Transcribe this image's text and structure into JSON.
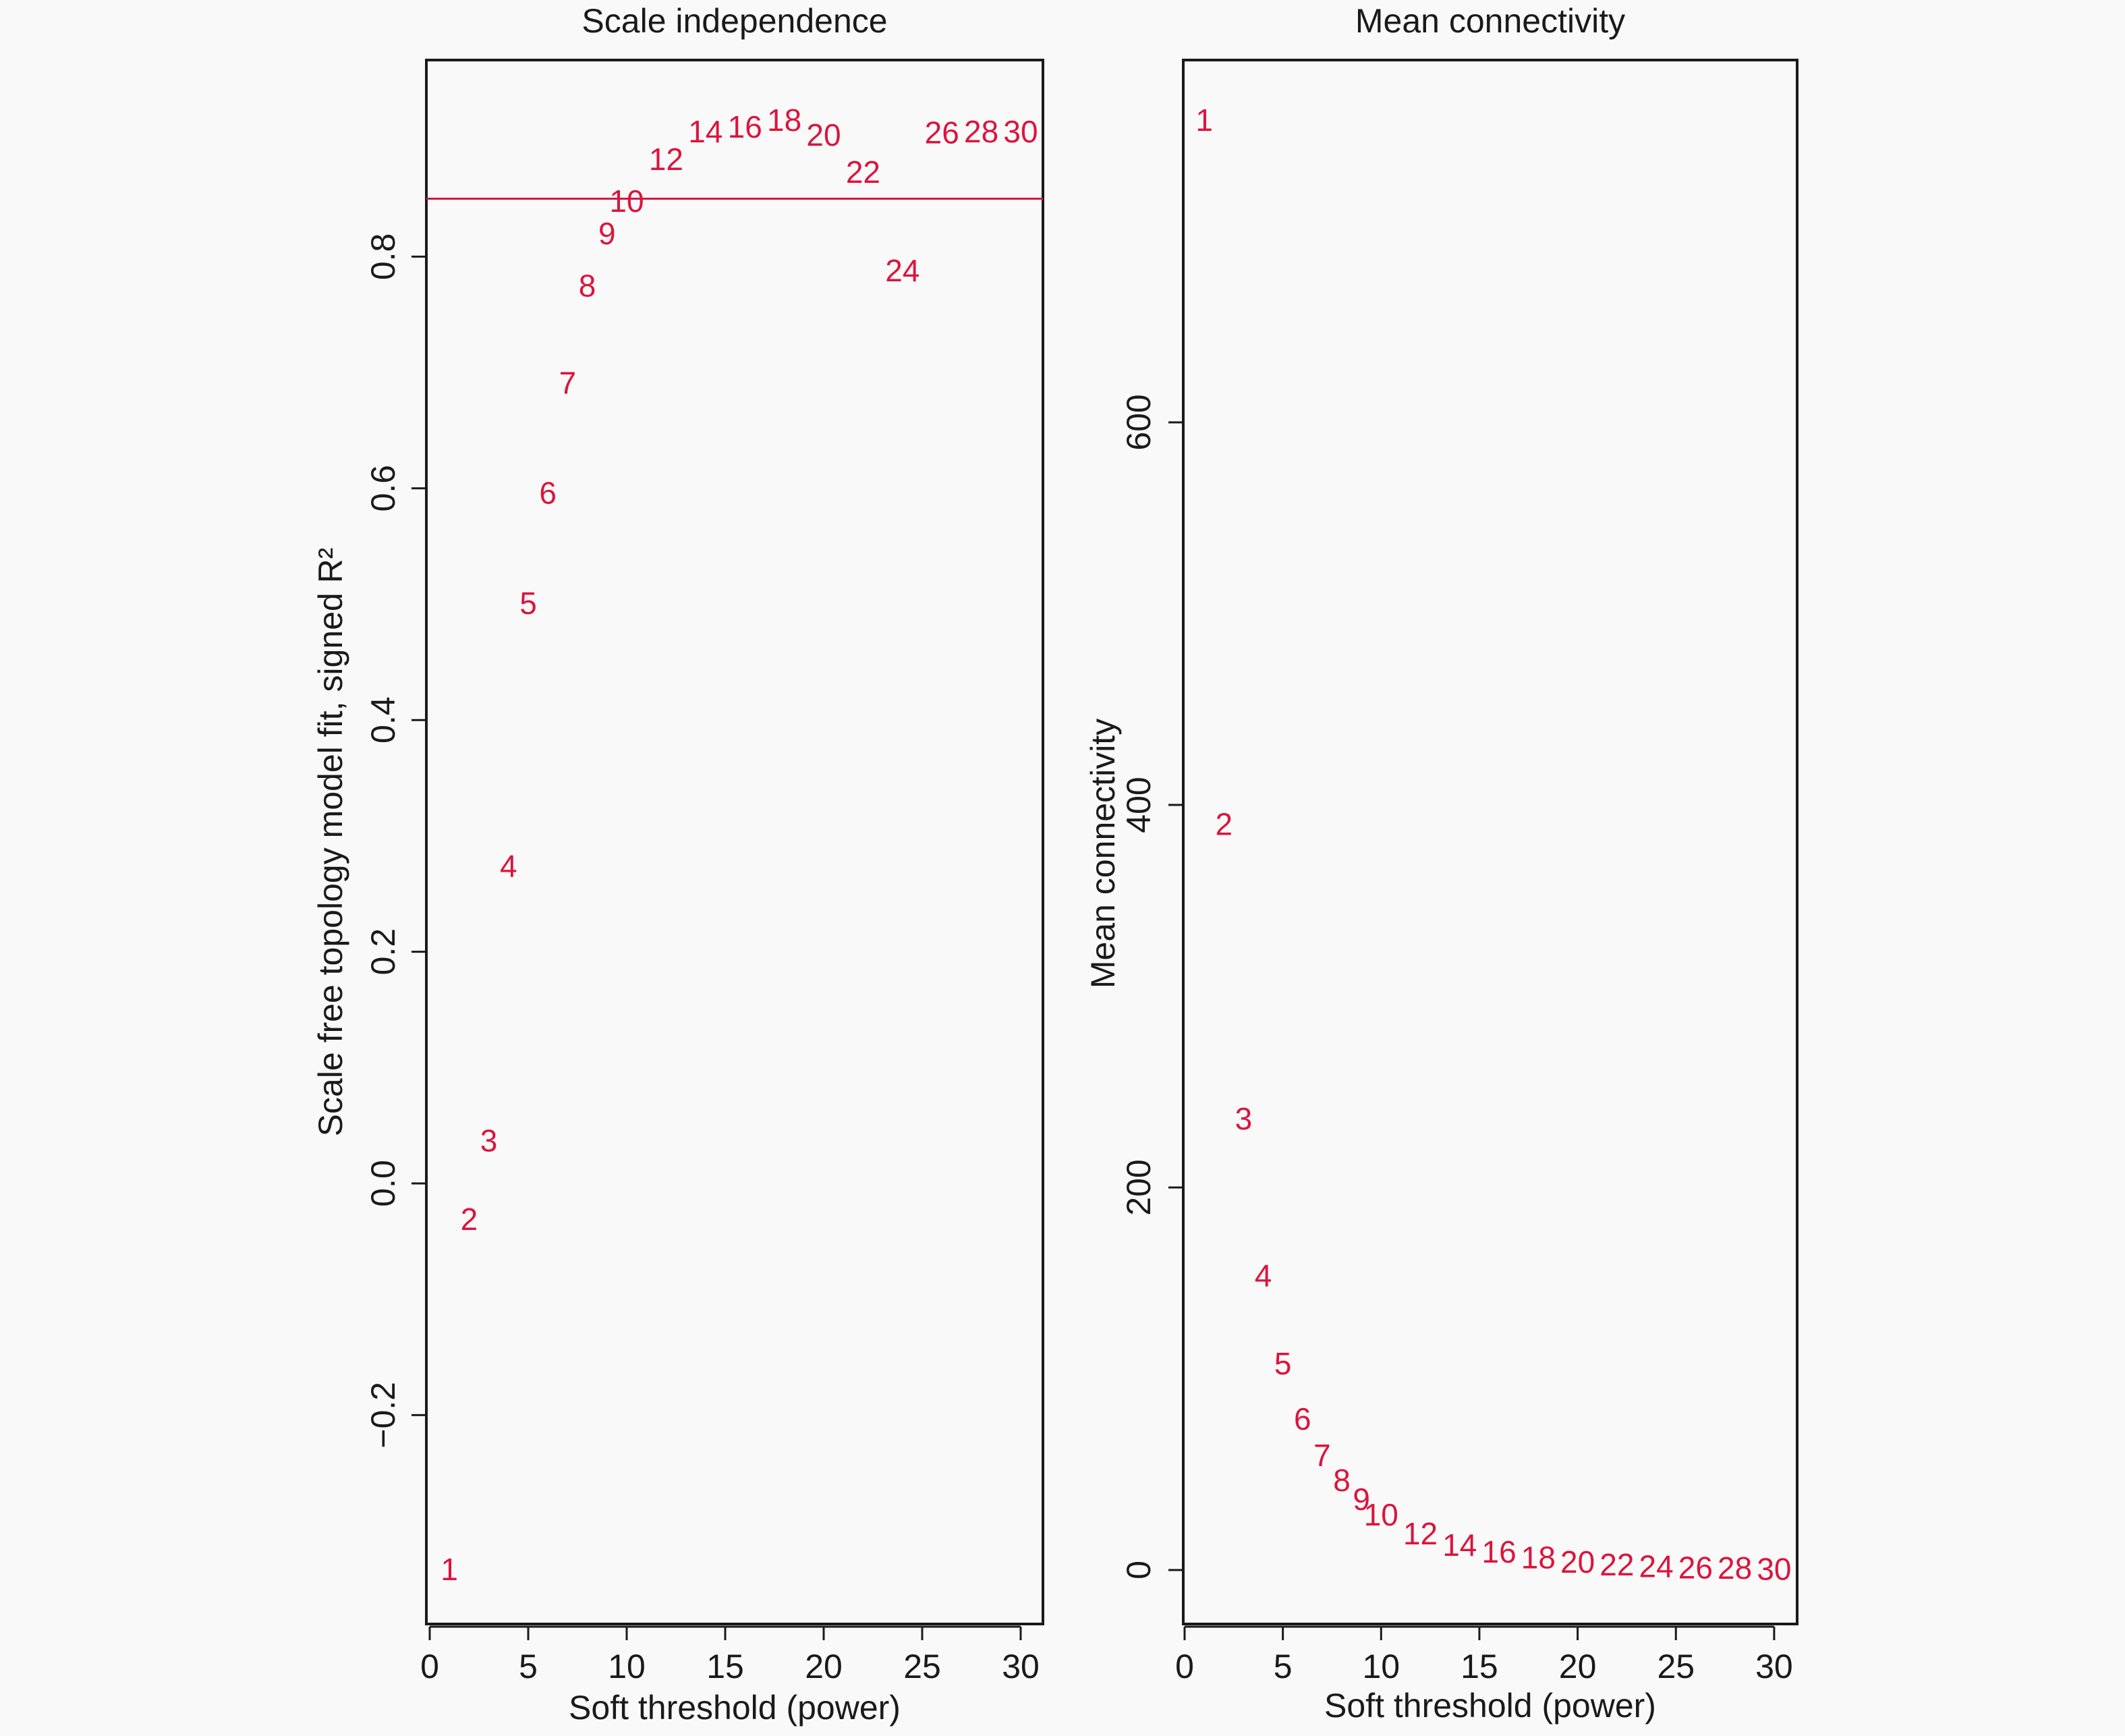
{
  "chart_data": [
    {
      "type": "scatter",
      "marker": "text-label",
      "title": "Scale independence",
      "xlabel": "Soft threshold (power)",
      "ylabel": "Scale free topology model fit, signed R²",
      "xlim": [
        0,
        31
      ],
      "ylim": [
        -0.36,
        0.97
      ],
      "xticks": [
        0,
        5,
        10,
        15,
        20,
        25,
        30
      ],
      "xtick_labels": [
        "0",
        "5",
        "10",
        "15",
        "20",
        "25",
        "30"
      ],
      "yticks": [
        -0.2,
        0.0,
        0.2,
        0.4,
        0.6,
        0.8
      ],
      "ytick_labels": [
        "−0.2",
        "0.0",
        "0.2",
        "0.4",
        "0.6",
        "0.8"
      ],
      "grid": false,
      "hline": {
        "y": 0.85,
        "color": "#dc143c"
      },
      "color": "#dc143c",
      "x": [
        1,
        2,
        3,
        4,
        5,
        6,
        7,
        8,
        9,
        10,
        12,
        14,
        16,
        18,
        20,
        22,
        24,
        26,
        28,
        30
      ],
      "y": [
        -0.333,
        -0.031,
        0.037,
        0.274,
        0.501,
        0.596,
        0.691,
        0.775,
        0.82,
        0.848,
        0.884,
        0.908,
        0.912,
        0.918,
        0.905,
        0.873,
        0.788,
        0.907,
        0.908,
        0.908
      ],
      "labels": [
        "1",
        "2",
        "3",
        "4",
        "5",
        "6",
        "7",
        "8",
        "9",
        "10",
        "12",
        "14",
        "16",
        "18",
        "20",
        "22",
        "24",
        "26",
        "28",
        "30"
      ]
    },
    {
      "type": "scatter",
      "marker": "text-label",
      "title": "Mean connectivity",
      "xlabel": "Soft threshold (power)",
      "ylabel": "Mean connectivity",
      "xlim": [
        0,
        31
      ],
      "ylim": [
        -28,
        820
      ],
      "xticks": [
        0,
        5,
        10,
        15,
        20,
        25,
        30
      ],
      "xtick_labels": [
        "0",
        "5",
        "10",
        "15",
        "20",
        "25",
        "30"
      ],
      "yticks": [
        0,
        200,
        400,
        600
      ],
      "ytick_labels": [
        "0",
        "200",
        "400",
        "600"
      ],
      "grid": false,
      "color": "#dc143c",
      "x": [
        1,
        2,
        3,
        4,
        5,
        6,
        7,
        8,
        9,
        10,
        12,
        14,
        16,
        18,
        20,
        22,
        24,
        26,
        28,
        30
      ],
      "y": [
        758,
        390,
        236,
        154,
        108,
        79,
        60,
        47,
        37,
        29,
        19,
        13,
        9.5,
        6.5,
        4.2,
        2.9,
        2.0,
        1.2,
        1.0,
        0.5
      ],
      "labels": [
        "1",
        "2",
        "3",
        "4",
        "5",
        "6",
        "7",
        "8",
        "9",
        "10",
        "12",
        "14",
        "16",
        "18",
        "20",
        "22",
        "24",
        "26",
        "28",
        "30"
      ]
    }
  ]
}
